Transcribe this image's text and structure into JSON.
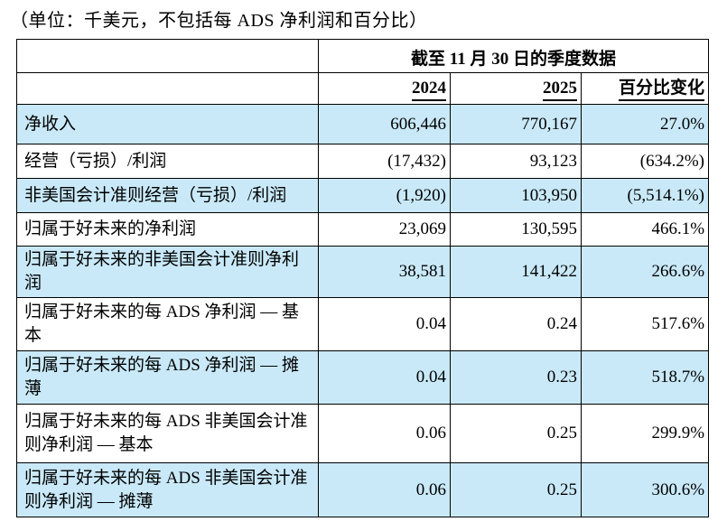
{
  "caption": "（单位：千美元，不包括每 ADS 净利润和百分比）",
  "colors": {
    "row_highlight": "#c9e9f8",
    "border": "#000000",
    "text": "#000000",
    "background": "#ffffff"
  },
  "table": {
    "span_header": "截至 11 月 30 日的季度数据",
    "columns": [
      "2024",
      "2025",
      "百分比变化"
    ],
    "rows": [
      {
        "label": "净收入",
        "y2024": "606,446",
        "y2025": "770,167",
        "change": "27.0%"
      },
      {
        "label": "经营（亏损）/利润",
        "y2024": "(17,432)",
        "y2025": "93,123",
        "change": "(634.2%)"
      },
      {
        "label": "非美国会计准则经营（亏损）/利润",
        "y2024": "(1,920)",
        "y2025": "103,950",
        "change": "(5,514.1%)"
      },
      {
        "label": "归属于好未来的净利润",
        "y2024": "23,069",
        "y2025": "130,595",
        "change": "466.1%"
      },
      {
        "label": "归属于好未来的非美国会计准则净利润",
        "y2024": "38,581",
        "y2025": "141,422",
        "change": "266.6%"
      },
      {
        "label": "归属于好未来的每 ADS 净利润 — 基本",
        "y2024": "0.04",
        "y2025": "0.24",
        "change": "517.6%"
      },
      {
        "label": "归属于好未来的每 ADS 净利润 — 摊薄",
        "y2024": "0.04",
        "y2025": "0.23",
        "change": "518.7%"
      },
      {
        "label": "归属于好未来的每 ADS 非美国会计准则净利润 — 基本",
        "y2024": "0.06",
        "y2025": "0.25",
        "change": "299.9%"
      },
      {
        "label": "归属于好未来的每 ADS 非美国会计准则净利润 — 摊薄",
        "y2024": "0.06",
        "y2025": "0.25",
        "change": "300.6%"
      }
    ]
  }
}
